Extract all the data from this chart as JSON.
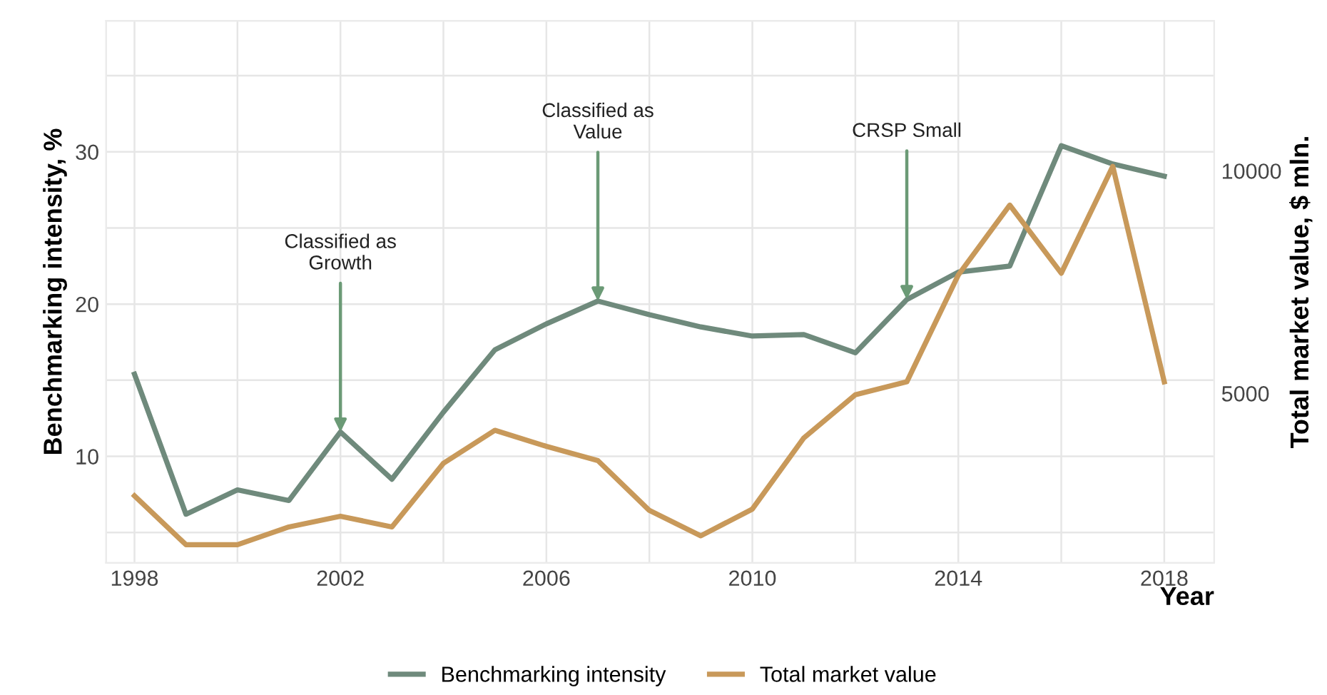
{
  "chart_data": {
    "type": "line",
    "xlabel": "Year",
    "ylabel": "Benchmarking intensity, %",
    "y2label": "Total market value, $ mln.",
    "x": [
      1998,
      1999,
      2000,
      2001,
      2002,
      2003,
      2004,
      2005,
      2006,
      2007,
      2008,
      2009,
      2010,
      2011,
      2012,
      2013,
      2014,
      2015,
      2016,
      2017,
      2018
    ],
    "series": [
      {
        "name": "Benchmarking intensity",
        "color": "#6f8a7c",
        "values": [
          15.4,
          6.2,
          7.8,
          7.1,
          11.6,
          8.5,
          12.9,
          17.0,
          18.7,
          20.2,
          19.3,
          18.5,
          17.9,
          18.0,
          16.8,
          20.3,
          22.1,
          22.5,
          30.4,
          29.2,
          28.4
        ]
      },
      {
        "name": "Total market value",
        "color": "#c8995a",
        "axis": "y2",
        "values": [
          2700,
          1600,
          1600,
          2000,
          2240,
          2000,
          3430,
          4170,
          3810,
          3490,
          2370,
          1800,
          2400,
          4000,
          4970,
          5260,
          7660,
          9230,
          7700,
          10100,
          5260
        ]
      }
    ],
    "xlim": [
      1997.45,
      2018.97
    ],
    "xticks": [
      1998,
      {
        "value": 2000,
        "label": null
      },
      2002,
      {
        "value": 2004,
        "label": null
      },
      2006,
      {
        "value": 2008,
        "label": null
      },
      2010,
      {
        "value": 2012,
        "label": null
      },
      2014,
      {
        "value": 2016,
        "label": null
      },
      2018
    ],
    "ylim": [
      3,
      38.6
    ],
    "yticks": [
      {
        "value": 5,
        "label": null
      },
      10,
      {
        "value": 15,
        "label": null
      },
      20,
      {
        "value": 25,
        "label": null
      },
      30,
      {
        "value": 35,
        "label": null
      }
    ],
    "y2lim": [
      1190,
      13370
    ],
    "y2ticks": [
      5000,
      10000
    ],
    "annotations": [
      {
        "text": "Classified as\nGrowth",
        "x": 2002,
        "y": 11.6
      },
      {
        "text": "Classified as\nValue",
        "x": 2007,
        "y": 20.2
      },
      {
        "text": "CRSP Small",
        "x": 2013,
        "y": 20.3
      }
    ],
    "grid": true,
    "legend": "bottom",
    "line_style": "solid",
    "marker": "none"
  }
}
